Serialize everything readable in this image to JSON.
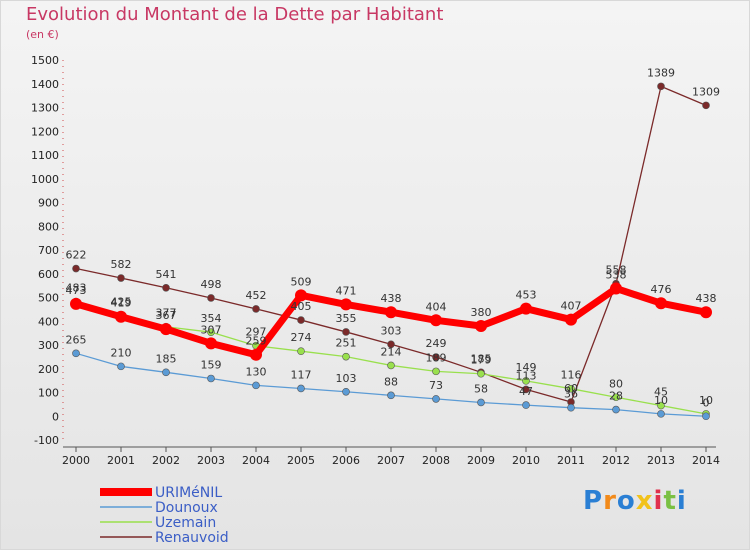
{
  "header": {
    "title": "Evolution du Montant de la Dette par Habitant",
    "subtitle": "(en €)"
  },
  "logo": {
    "letters": [
      "P",
      "r",
      "o",
      "x",
      "i",
      "t",
      "i"
    ],
    "colors": [
      "#2a7fd4",
      "#f28a1a",
      "#2a7fd4",
      "#f2c21a",
      "#e0304c",
      "#7bc043",
      "#2a7fd4"
    ]
  },
  "chart_data": {
    "type": "line",
    "x": [
      "2000",
      "2001",
      "2002",
      "2003",
      "2004",
      "2005",
      "2006",
      "2007",
      "2008",
      "2009",
      "2010",
      "2011",
      "2012",
      "2013",
      "2014"
    ],
    "ylim": [
      -100,
      1500
    ],
    "yticks": [
      -100,
      0,
      100,
      200,
      300,
      400,
      500,
      600,
      700,
      800,
      900,
      1000,
      1100,
      1200,
      1300,
      1400,
      1500
    ],
    "grid": false,
    "legend_position": "bottom-left",
    "series": [
      {
        "name": "URIMéNIL",
        "color": "#ff0000",
        "values": [
          473,
          419,
          367,
          307,
          259,
          509,
          471,
          438,
          404,
          380,
          453,
          407,
          538,
          476,
          438
        ]
      },
      {
        "name": "Dounoux",
        "color": "#5b9bd5",
        "values": [
          265,
          210,
          185,
          159,
          130,
          117,
          103,
          88,
          73,
          58,
          47,
          36,
          28,
          10,
          0
        ]
      },
      {
        "name": "Uzemain",
        "color": "#99e04d",
        "values": [
          483,
          425,
          377,
          354,
          297,
          274,
          251,
          214,
          189,
          179,
          149,
          116,
          80,
          45,
          10
        ]
      },
      {
        "name": "Renauvoid",
        "color": "#7b2a2a",
        "values": [
          622,
          582,
          541,
          498,
          452,
          405,
          355,
          303,
          249,
          185,
          113,
          60,
          558,
          1389,
          1309
        ]
      }
    ]
  }
}
